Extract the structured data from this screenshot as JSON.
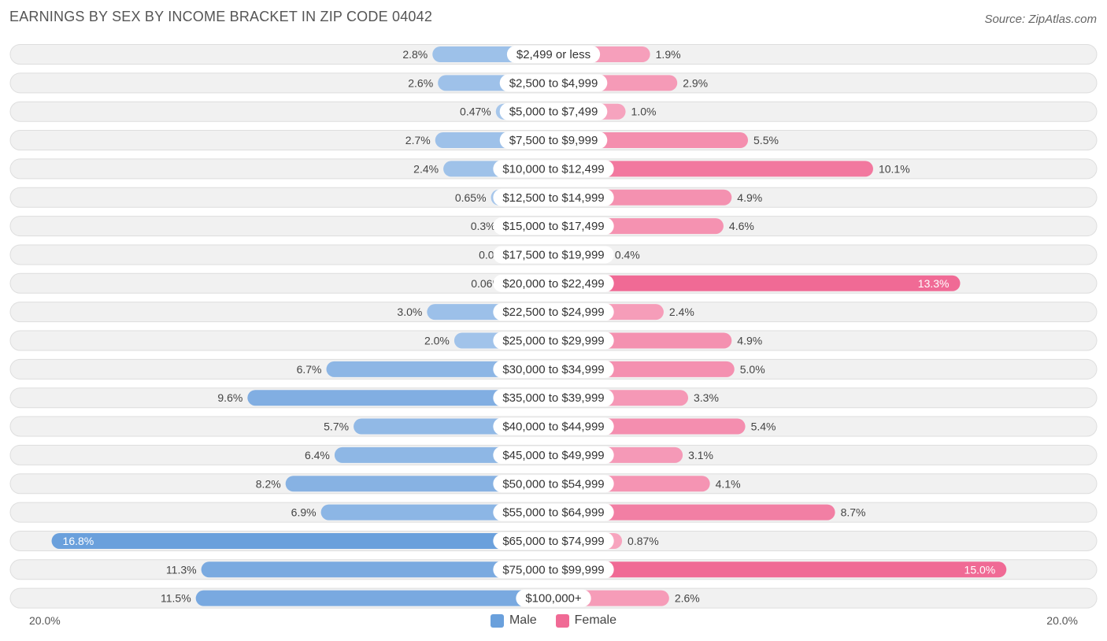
{
  "header": {
    "title": "EARNINGS BY SEX BY INCOME BRACKET IN ZIP CODE 04042",
    "source": "Source: ZipAtlas.com"
  },
  "colors": {
    "male": "#6aa0dc",
    "male_light": "#a9c8ec",
    "female": "#f06a95",
    "female_light": "#f7a8c1"
  },
  "chart_data": {
    "type": "bar",
    "orientation": "horizontal-diverging",
    "title": "EARNINGS BY SEX BY INCOME BRACKET IN ZIP CODE 04042",
    "categories": [
      "$2,499 or less",
      "$2,500 to $4,999",
      "$5,000 to $7,499",
      "$7,500 to $9,999",
      "$10,000 to $12,499",
      "$12,500 to $14,999",
      "$15,000 to $17,499",
      "$17,500 to $19,999",
      "$20,000 to $22,499",
      "$22,500 to $24,999",
      "$25,000 to $29,999",
      "$30,000 to $34,999",
      "$35,000 to $39,999",
      "$40,000 to $44,999",
      "$45,000 to $49,999",
      "$50,000 to $54,999",
      "$55,000 to $64,999",
      "$65,000 to $74,999",
      "$75,000 to $99,999",
      "$100,000+"
    ],
    "series": [
      {
        "name": "Male",
        "values": [
          2.8,
          2.6,
          0.47,
          2.7,
          2.4,
          0.65,
          0.3,
          0.0,
          0.06,
          3.0,
          2.0,
          6.7,
          9.6,
          5.7,
          6.4,
          8.2,
          6.9,
          16.8,
          11.3,
          11.5
        ],
        "labels": [
          "2.8%",
          "2.6%",
          "0.47%",
          "2.7%",
          "2.4%",
          "0.65%",
          "0.3%",
          "0.0%",
          "0.06%",
          "3.0%",
          "2.0%",
          "6.7%",
          "9.6%",
          "5.7%",
          "6.4%",
          "8.2%",
          "6.9%",
          "16.8%",
          "11.3%",
          "11.5%"
        ]
      },
      {
        "name": "Female",
        "values": [
          1.9,
          2.9,
          1.0,
          5.5,
          10.1,
          4.9,
          4.6,
          0.4,
          13.3,
          2.4,
          4.9,
          5.0,
          3.3,
          5.4,
          3.1,
          4.1,
          8.7,
          0.87,
          15.0,
          2.6
        ],
        "labels": [
          "1.9%",
          "2.9%",
          "1.0%",
          "5.5%",
          "10.1%",
          "4.9%",
          "4.6%",
          "0.4%",
          "13.3%",
          "2.4%",
          "4.9%",
          "5.0%",
          "3.3%",
          "5.4%",
          "3.1%",
          "4.1%",
          "8.7%",
          "0.87%",
          "15.0%",
          "2.6%"
        ]
      }
    ],
    "xlim": [
      -20.0,
      20.0
    ],
    "axis_left_label": "20.0%",
    "axis_right_label": "20.0%",
    "legend": [
      "Male",
      "Female"
    ],
    "legend_position": "bottom-center"
  }
}
